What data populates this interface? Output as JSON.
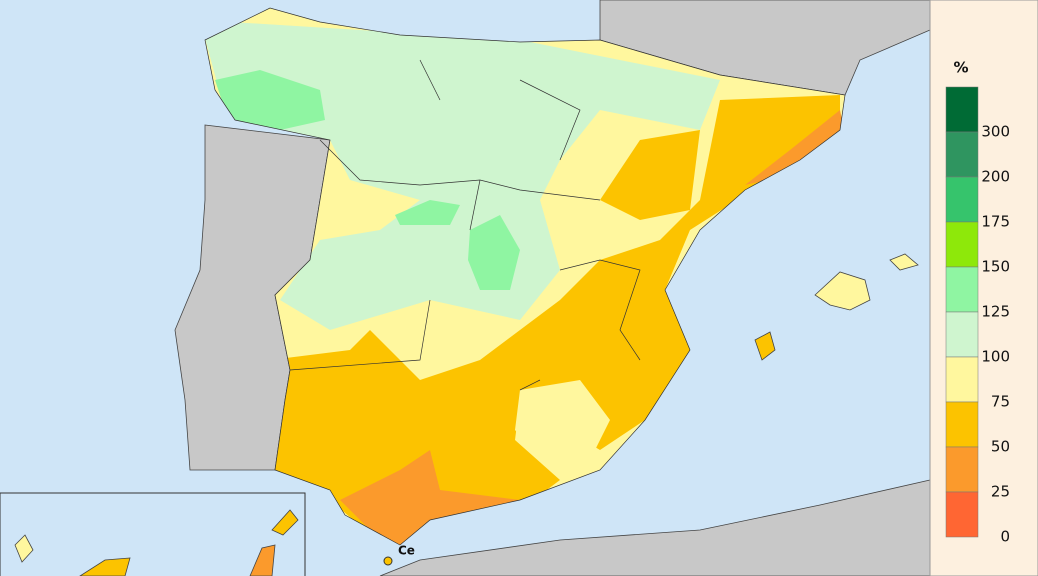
{
  "map": {
    "place_label": "Ce",
    "legend": {
      "unit": "%",
      "labels": [
        "300",
        "200",
        "175",
        "150",
        "125",
        "100",
        "75",
        "50",
        "25",
        "0"
      ],
      "colors": [
        "#006b35",
        "#2f9560",
        "#36c46c",
        "#8ee80a",
        "#8ff5a2",
        "#cff5cf",
        "#fff79e",
        "#fcc300",
        "#fb9a2c",
        "#ff6633"
      ]
    }
  }
}
